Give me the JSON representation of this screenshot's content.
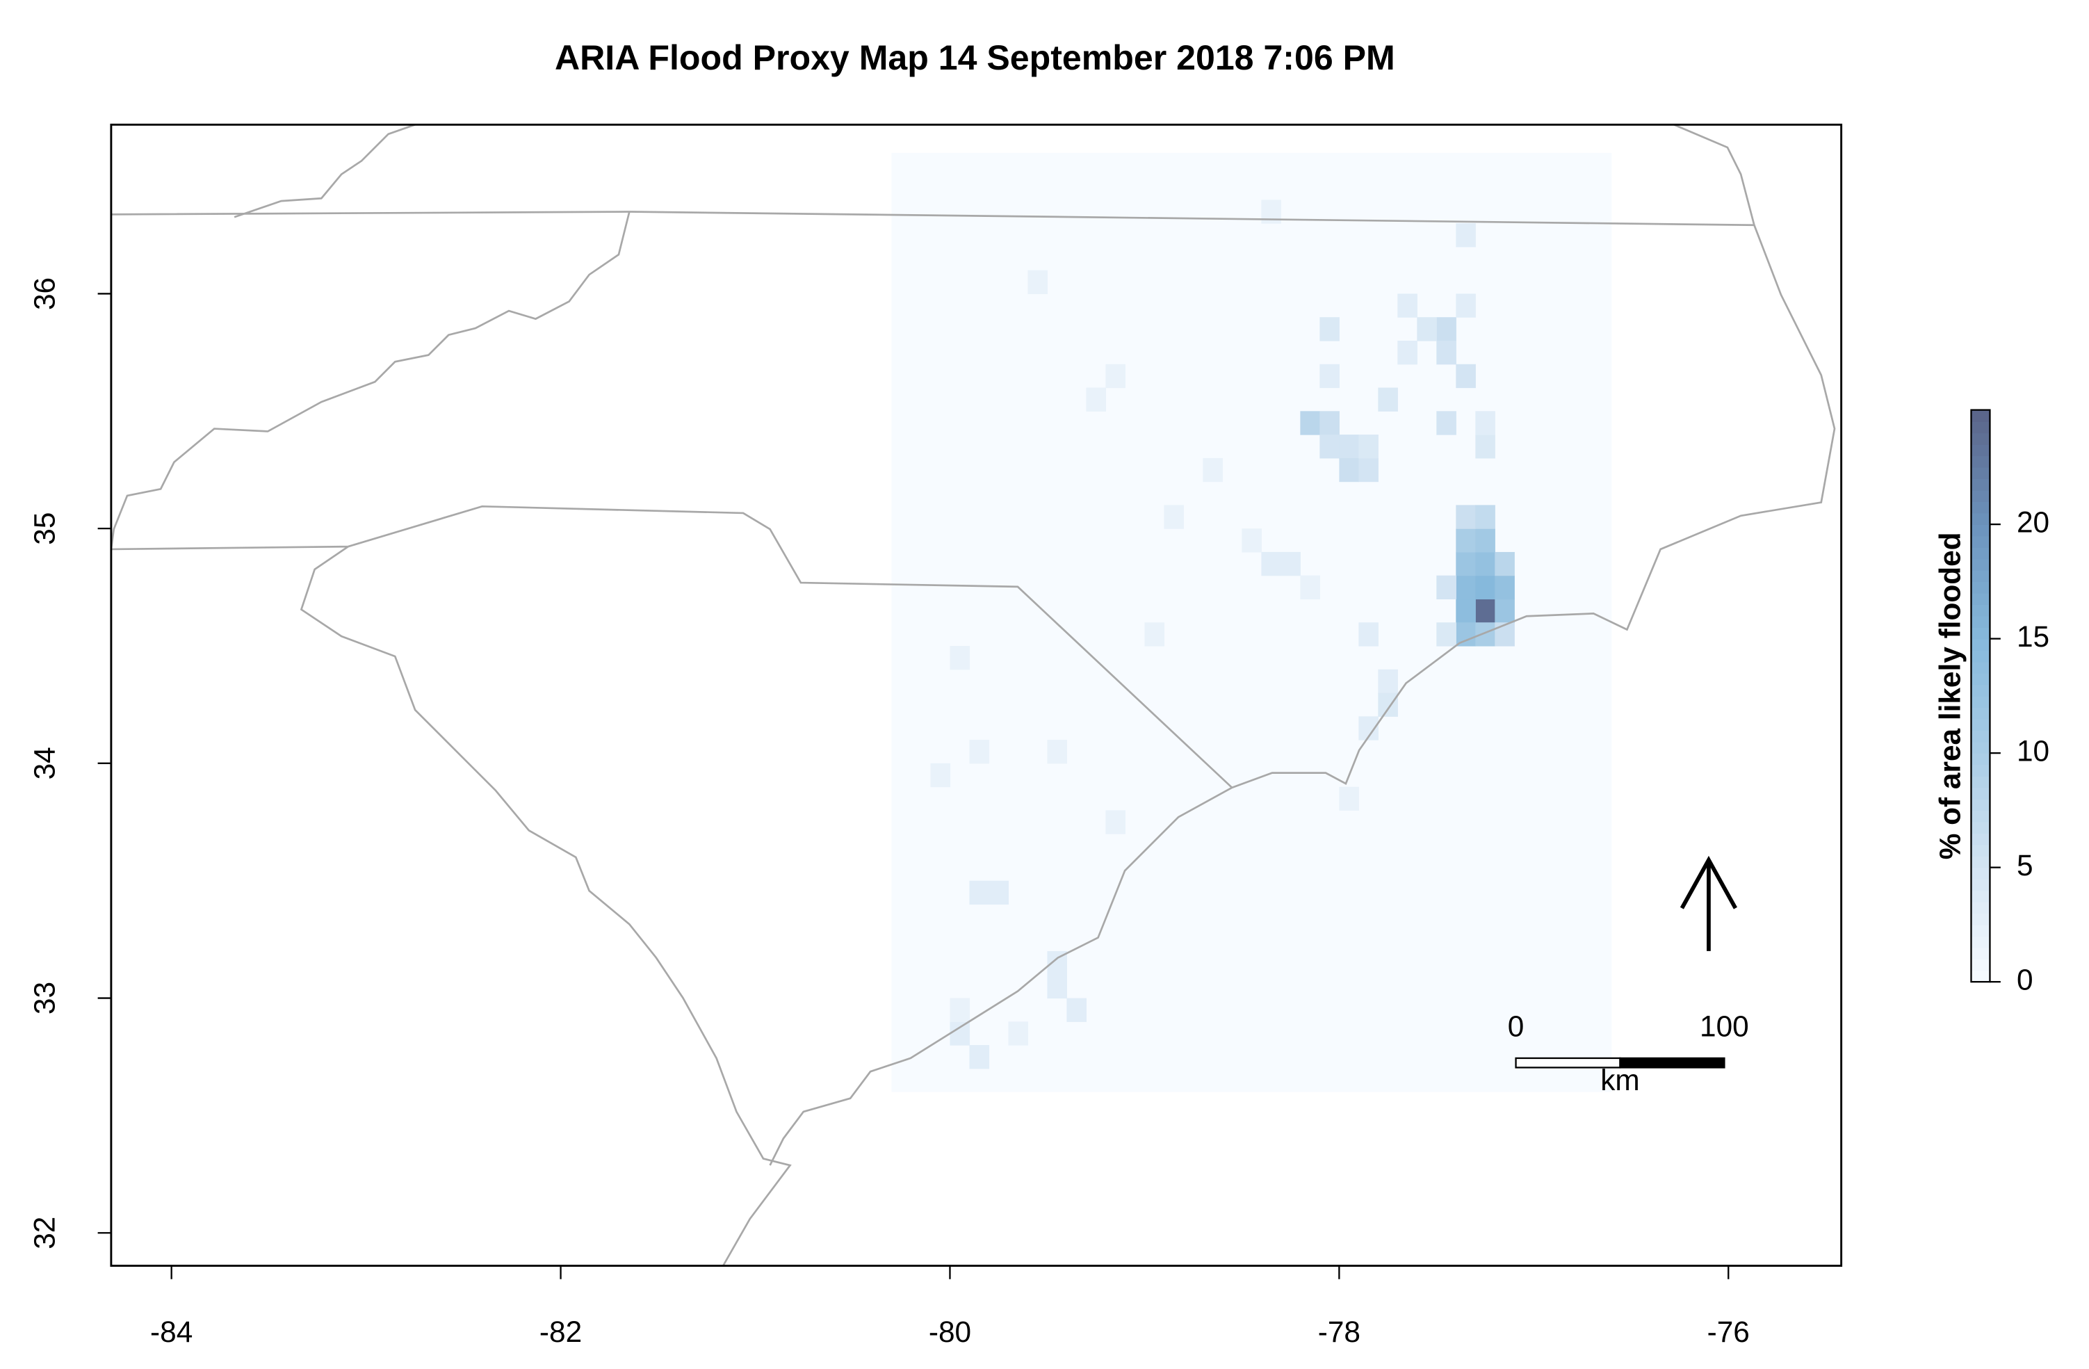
{
  "chart_data": {
    "type": "heatmap",
    "title": "ARIA Flood Proxy Map 14 September 2018 7:06 PM",
    "xlim": [
      -84.31,
      -75.42
    ],
    "ylim": [
      31.86,
      36.72
    ],
    "xticks": [
      -84,
      -82,
      -80,
      -78,
      -76
    ],
    "yticks": [
      32,
      33,
      34,
      35,
      36
    ],
    "background": {
      "xlim": [
        -80.3,
        -76.6
      ],
      "ylim": [
        32.6,
        36.6
      ],
      "value": 0
    },
    "cells": {
      "x": [
        -77.25,
        -77.35,
        -77.15,
        -77.35,
        -77.25,
        -77.15,
        -77.35,
        -77.25,
        -77.15,
        -77.35,
        -77.25,
        -77.15,
        -77.35,
        -77.25,
        -77.35,
        -77.25,
        -77.45,
        -77.45,
        -78.15,
        -78.05,
        -78.05,
        -77.95,
        -77.95,
        -77.85,
        -77.85,
        -77.45,
        -77.45,
        -77.35,
        -77.55,
        -77.65,
        -77.75,
        -77.45,
        -77.25,
        -77.25,
        -78.05,
        -78.05,
        -77.35,
        -77.35,
        -77.65,
        -78.35,
        -78.25,
        -78.45,
        -78.15,
        -77.85,
        -77.75,
        -77.75,
        -77.85,
        -77.95,
        -78.85,
        -78.65,
        -78.95,
        -79.15,
        -79.25,
        -79.55,
        -78.35,
        -79.85,
        -79.75,
        -79.45,
        -79.45,
        -79.35,
        -79.95,
        -79.85,
        -79.95,
        -79.65,
        -79.95,
        -79.85,
        -80.05,
        -79.15,
        -79.45
      ],
      "y": [
        34.65,
        34.65,
        34.65,
        34.55,
        34.55,
        34.55,
        34.75,
        34.75,
        34.75,
        34.85,
        34.85,
        34.85,
        34.95,
        34.95,
        35.05,
        35.05,
        34.75,
        34.55,
        35.45,
        35.45,
        35.35,
        35.35,
        35.25,
        35.25,
        35.35,
        35.85,
        35.75,
        35.65,
        35.85,
        35.75,
        35.55,
        35.45,
        35.35,
        35.45,
        35.85,
        35.65,
        35.95,
        36.25,
        35.95,
        34.85,
        34.85,
        34.95,
        34.75,
        34.55,
        34.35,
        34.25,
        34.15,
        33.85,
        35.05,
        35.25,
        34.55,
        35.65,
        35.55,
        36.05,
        36.35,
        33.45,
        33.45,
        33.15,
        33.05,
        32.95,
        32.85,
        32.75,
        32.95,
        32.85,
        34.45,
        34.05,
        33.95,
        33.75,
        34.05
      ],
      "values": [
        24,
        14,
        12,
        12,
        10,
        6,
        14,
        15,
        13,
        12,
        13,
        8,
        10,
        11,
        6,
        7,
        5,
        4,
        8,
        6,
        5,
        5,
        6,
        5,
        4,
        6,
        5,
        5,
        4,
        3,
        4,
        5,
        4,
        3,
        4,
        3,
        3,
        3,
        3,
        3,
        3,
        2,
        2,
        3,
        3,
        4,
        3,
        2,
        2,
        2,
        2,
        2,
        2,
        2,
        2,
        3,
        3,
        3,
        3,
        3,
        3,
        3,
        2,
        2,
        2,
        2,
        2,
        2,
        2
      ]
    },
    "colorbar": {
      "label": "% of area likely flooded",
      "lim": [
        0,
        25
      ],
      "ticks": [
        0,
        5,
        10,
        15,
        20
      ],
      "colors": [
        "#f7fbff",
        "#d3e4f3",
        "#a9cde6",
        "#86b9dc",
        "#6c93bd",
        "#5a6488"
      ]
    },
    "scale_bar": {
      "ticks": [
        0,
        100
      ],
      "unit": "km"
    }
  }
}
